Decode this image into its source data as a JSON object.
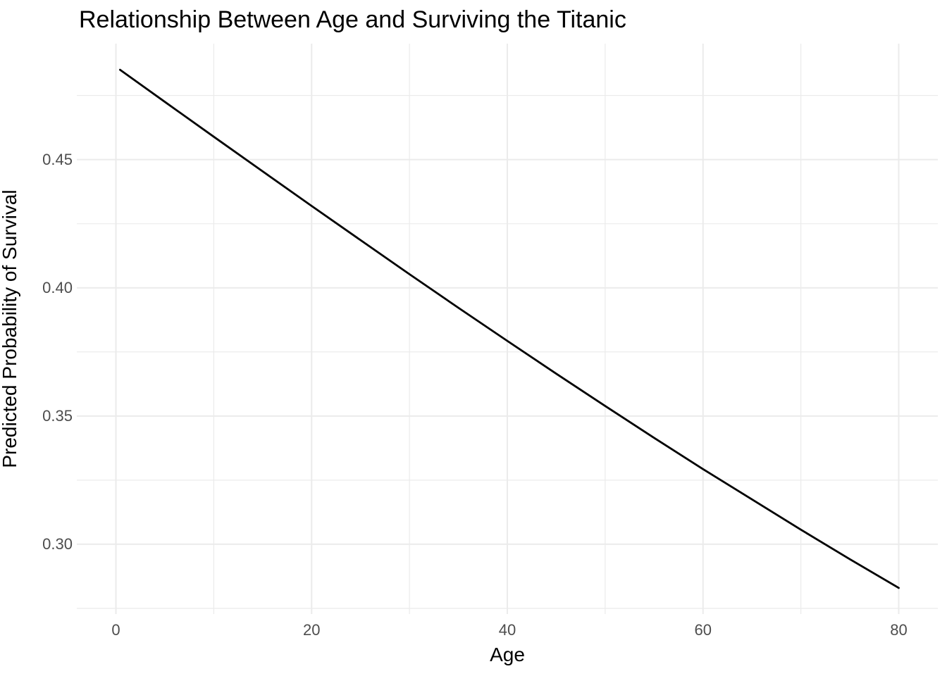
{
  "page": {
    "background": "#FFFFFF"
  },
  "chart_data": {
    "type": "line",
    "title": "Relationship Between Age and Surviving the Titanic",
    "xlabel": "Age",
    "ylabel": "Predicted Probability of Survival",
    "xlim": [
      -4,
      84
    ],
    "ylim": [
      0.2728,
      0.4952
    ],
    "x_ticks": [
      0,
      20,
      40,
      60,
      80
    ],
    "x_tick_labels": [
      "0",
      "20",
      "40",
      "60",
      "80"
    ],
    "x_minor_ticks": [
      10,
      30,
      50,
      70
    ],
    "y_ticks": [
      0.3,
      0.35,
      0.4,
      0.45
    ],
    "y_tick_labels": [
      "0.30",
      "0.35",
      "0.40",
      "0.45"
    ],
    "y_minor_ticks": [
      0.275,
      0.325,
      0.375,
      0.425,
      0.475
    ],
    "grid": "major-and-minor",
    "legend": "none",
    "theme": {
      "background_color": "#FFFFFF",
      "grid_color": "#EBEBEB",
      "axis_text_color": "#4D4D4D",
      "title_color": "#000000",
      "line_color": "#000000"
    },
    "series": [
      {
        "name": "Predicted Probability of Survival",
        "color": "#000000",
        "x": [
          0.42,
          5,
          10,
          15,
          20,
          25,
          30,
          35,
          40,
          45,
          50,
          55,
          60,
          65,
          70,
          75,
          80
        ],
        "y": [
          0.485,
          0.4725,
          0.4589,
          0.4454,
          0.4319,
          0.4186,
          0.4053,
          0.3922,
          0.3793,
          0.3665,
          0.3539,
          0.3415,
          0.3293,
          0.3175,
          0.3057,
          0.2942,
          0.283
        ]
      }
    ]
  }
}
